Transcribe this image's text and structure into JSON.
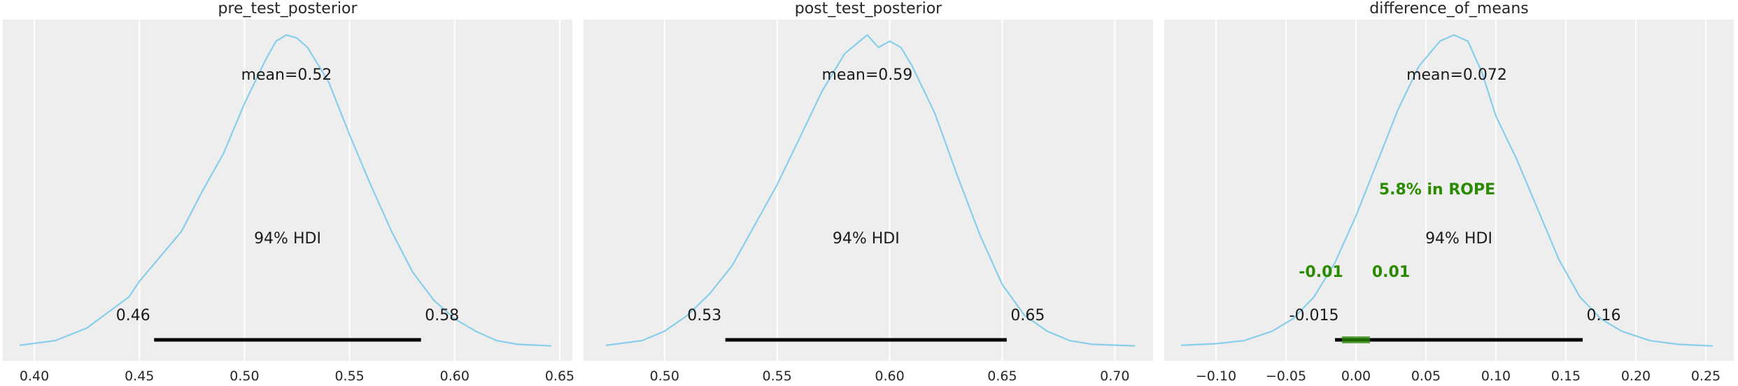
{
  "chart_data": [
    {
      "type": "area",
      "title": "pre_test_posterior",
      "xlim": [
        0.385,
        0.656
      ],
      "xticks": [
        0.4,
        0.45,
        0.5,
        0.55,
        0.6,
        0.65
      ],
      "xtick_labels": [
        "0.40",
        "0.45",
        "0.50",
        "0.55",
        "0.60",
        "0.65"
      ],
      "density": {
        "x": [
          0.393,
          0.41,
          0.425,
          0.435,
          0.445,
          0.45,
          0.46,
          0.47,
          0.48,
          0.49,
          0.5,
          0.51,
          0.515,
          0.52,
          0.525,
          0.53,
          0.54,
          0.55,
          0.56,
          0.57,
          0.58,
          0.59,
          0.6,
          0.61,
          0.62,
          0.63,
          0.646
        ],
        "y": [
          0.005,
          0.02,
          0.06,
          0.11,
          0.16,
          0.21,
          0.29,
          0.37,
          0.5,
          0.62,
          0.78,
          0.92,
          0.98,
          1.0,
          0.99,
          0.96,
          0.85,
          0.68,
          0.52,
          0.37,
          0.24,
          0.15,
          0.09,
          0.05,
          0.02,
          0.008,
          0.003
        ]
      },
      "mean_label": "mean=0.52",
      "mean_value": 0.52,
      "hdi_label": "94% HDI",
      "hdi": [
        0.457,
        0.584
      ],
      "hdi_low_label": "0.46",
      "hdi_high_label": "0.58"
    },
    {
      "type": "area",
      "title": "post_test_posterior",
      "xlim": [
        0.464,
        0.717
      ],
      "xticks": [
        0.5,
        0.55,
        0.6,
        0.65,
        0.7
      ],
      "xtick_labels": [
        "0.50",
        "0.55",
        "0.60",
        "0.65",
        "0.70"
      ],
      "density": {
        "x": [
          0.474,
          0.49,
          0.5,
          0.51,
          0.52,
          0.53,
          0.54,
          0.55,
          0.56,
          0.57,
          0.575,
          0.58,
          0.585,
          0.59,
          0.595,
          0.6,
          0.605,
          0.61,
          0.62,
          0.63,
          0.64,
          0.65,
          0.66,
          0.67,
          0.68,
          0.69,
          0.709
        ],
        "y": [
          0.005,
          0.02,
          0.05,
          0.1,
          0.17,
          0.26,
          0.39,
          0.52,
          0.67,
          0.82,
          0.88,
          0.94,
          0.97,
          1.0,
          0.96,
          0.98,
          0.96,
          0.9,
          0.75,
          0.55,
          0.36,
          0.2,
          0.1,
          0.05,
          0.02,
          0.008,
          0.003
        ]
      },
      "mean_label": "mean=0.59",
      "mean_value": 0.59,
      "hdi_label": "94% HDI",
      "hdi": [
        0.527,
        0.652
      ],
      "hdi_low_label": "0.53",
      "hdi_high_label": "0.65"
    },
    {
      "type": "area",
      "title": "difference_of_means",
      "xlim": [
        -0.137,
        0.27
      ],
      "xticks": [
        -0.1,
        -0.05,
        0.0,
        0.05,
        0.1,
        0.15,
        0.2,
        0.25
      ],
      "xtick_labels": [
        "−0.10",
        "−0.05",
        "0.00",
        "0.05",
        "0.10",
        "0.15",
        "0.20",
        "0.25"
      ],
      "density": {
        "x": [
          -0.125,
          -0.1,
          -0.08,
          -0.06,
          -0.045,
          -0.03,
          -0.015,
          0.0,
          0.015,
          0.03,
          0.045,
          0.06,
          0.07,
          0.08,
          0.09,
          0.1,
          0.115,
          0.13,
          0.145,
          0.16,
          0.175,
          0.19,
          0.21,
          0.23,
          0.255
        ],
        "y": [
          0.005,
          0.01,
          0.02,
          0.05,
          0.09,
          0.16,
          0.27,
          0.42,
          0.59,
          0.76,
          0.9,
          0.98,
          1.0,
          0.98,
          0.88,
          0.74,
          0.6,
          0.44,
          0.28,
          0.16,
          0.09,
          0.05,
          0.02,
          0.008,
          0.003
        ]
      },
      "mean_label": "mean=0.072",
      "mean_value": 0.072,
      "hdi_label": "94% HDI",
      "hdi": [
        -0.015,
        0.162
      ],
      "hdi_low_label": "-0.015",
      "hdi_high_label": "0.16",
      "rope": [
        -0.01,
        0.01
      ],
      "rope_label": "5.8% in ROPE",
      "rope_low_label": "-0.01",
      "rope_high_label": "0.01"
    }
  ]
}
